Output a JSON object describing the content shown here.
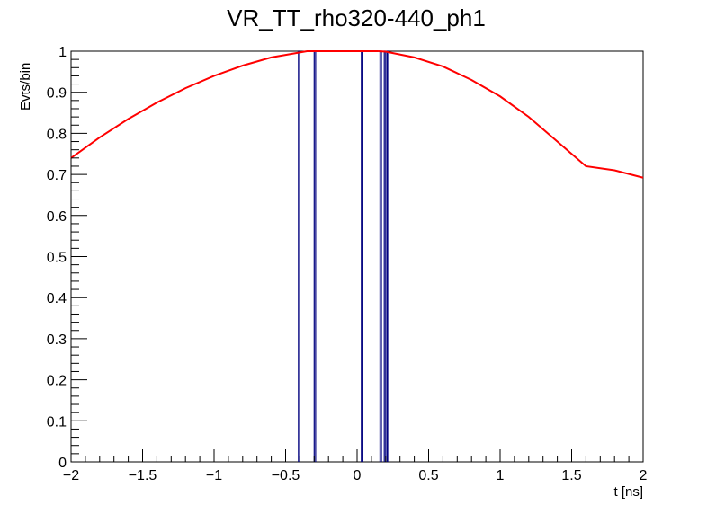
{
  "chart_data": {
    "type": "line",
    "title": "VR_TT_rho320-440_ph1",
    "xlabel": "t [ns]",
    "ylabel": "Evts/bin",
    "xlim": [
      -2,
      2
    ],
    "ylim": [
      0,
      1
    ],
    "x_ticks": [
      "−2",
      "−1.5",
      "−1",
      "−0.5",
      "0",
      "0.5",
      "1",
      "1.5",
      "2"
    ],
    "y_ticks": [
      "0",
      "0.1",
      "0.2",
      "0.3",
      "0.4",
      "0.5",
      "0.6",
      "0.7",
      "0.8",
      "0.9",
      "1"
    ],
    "grid": false,
    "histogram": {
      "color": "#00007f",
      "bars": [
        {
          "x0": -0.41,
          "x1": -0.4,
          "value": 1
        },
        {
          "x0": -0.3,
          "x1": -0.29,
          "value": 1
        },
        {
          "x0": 0.03,
          "x1": 0.04,
          "value": 1
        },
        {
          "x0": 0.16,
          "x1": 0.17,
          "value": 1
        },
        {
          "x0": 0.19,
          "x1": 0.2,
          "value": 1
        },
        {
          "x0": 0.21,
          "x1": 0.22,
          "value": 1
        }
      ]
    },
    "curves": [
      {
        "color": "#ff0000",
        "x": [
          -2.0,
          -1.8,
          -1.6,
          -1.4,
          -1.2,
          -1.0,
          -0.8,
          -0.6,
          -0.4,
          -0.35,
          -0.3,
          -0.2,
          -0.1,
          0.0,
          0.1,
          0.15
        ],
        "y": [
          0.74,
          0.79,
          0.835,
          0.875,
          0.91,
          0.94,
          0.965,
          0.985,
          0.997,
          1.0,
          1.0,
          1.0,
          1.0,
          1.0,
          1.0,
          1.0
        ]
      },
      {
        "color": "#ff0000",
        "x": [
          0.15,
          0.2,
          0.4,
          0.6,
          0.8,
          1.0,
          1.2,
          1.4,
          1.6,
          1.8,
          2.0
        ],
        "y": [
          1.0,
          0.999,
          0.985,
          0.963,
          0.93,
          0.89,
          0.84,
          0.78,
          0.72,
          0.71,
          0.692
        ]
      }
    ]
  }
}
